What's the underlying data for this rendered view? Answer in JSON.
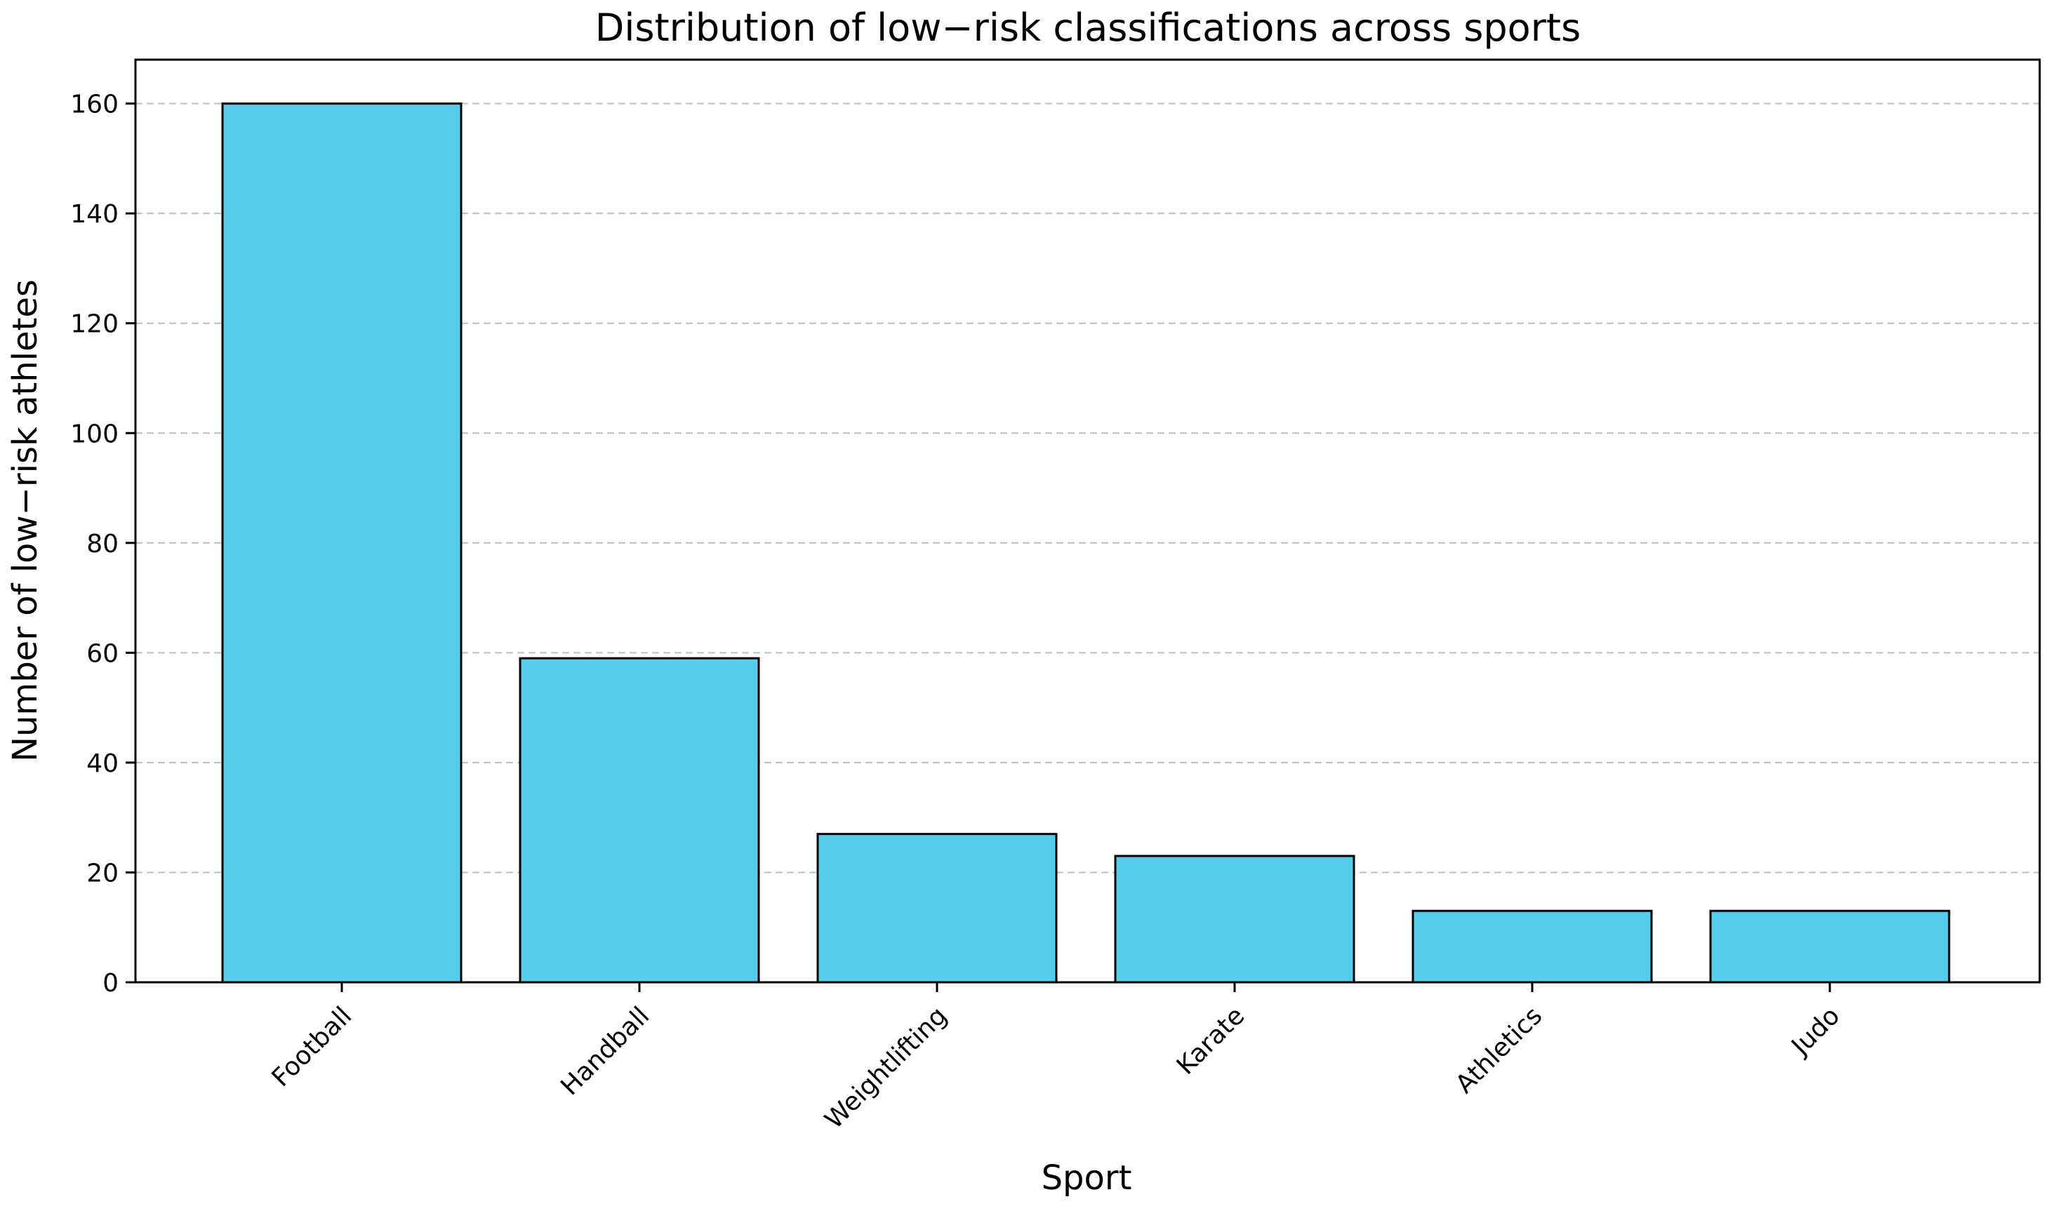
{
  "chart_data": {
    "type": "bar",
    "title": "Distribution of low−risk classifications across sports",
    "xlabel": "Sport",
    "ylabel": "Number of low−risk athletes",
    "categories": [
      "Football",
      "Handball",
      "Weightlifting",
      "Karate",
      "Athletics",
      "Judo"
    ],
    "values": [
      160,
      59,
      27,
      23,
      13,
      13
    ],
    "ylim": [
      0,
      168
    ],
    "yticks": [
      0,
      20,
      40,
      60,
      80,
      100,
      120,
      140,
      160
    ],
    "grid": "y-dashed",
    "bar_color": "#56cdec",
    "edge_color": "#000000"
  }
}
